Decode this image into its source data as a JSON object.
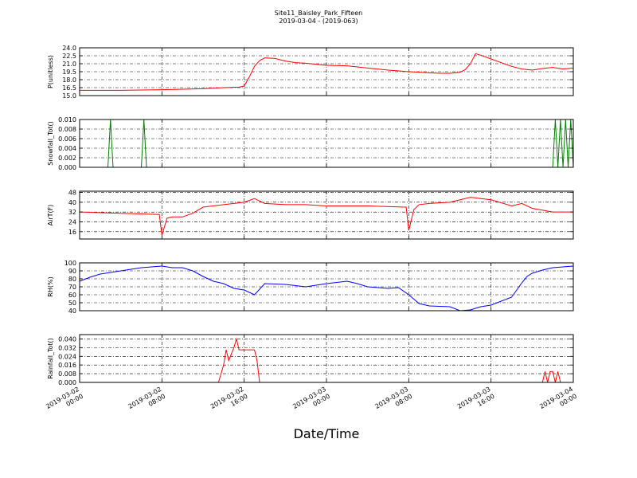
{
  "chart_data": {
    "type": "line",
    "title": "Site11_Baisley_Park_Fifteen",
    "subtitle": "2019-03-04 - (2019-063)",
    "xlabel": "Date/Time",
    "x_ticks": [
      {
        "line1": "2019-03-02",
        "line2": "00:00"
      },
      {
        "line1": "2019-03-02",
        "line2": "08:00"
      },
      {
        "line1": "2019-03-02",
        "line2": "16:00"
      },
      {
        "line1": "2019-03-03",
        "line2": "00:00"
      },
      {
        "line1": "2019-03-03",
        "line2": "08:00"
      },
      {
        "line1": "2019-03-03",
        "line2": "16:00"
      },
      {
        "line1": "2019-03-04",
        "line2": "00:00"
      }
    ],
    "xlim": [
      "2019-03-02 00:00",
      "2019-03-04 00:00"
    ],
    "grid": true,
    "panels": [
      {
        "ylabel": "P(unitless)",
        "ylim": [
          15.0,
          24.0
        ],
        "yticks": [
          "15.0",
          "16.5",
          "18.0",
          "19.5",
          "21.0",
          "22.5",
          "24.0"
        ],
        "ytick_values": [
          15.0,
          16.5,
          18.0,
          19.5,
          21.0,
          22.5,
          24.0
        ],
        "color": "#ff0000",
        "series": {
          "x": [
            "2019-03-02 00:00",
            "2019-03-02 04:00",
            "2019-03-02 08:00",
            "2019-03-02 12:00",
            "2019-03-02 14:00",
            "2019-03-02 15:30",
            "2019-03-02 16:00",
            "2019-03-02 16:30",
            "2019-03-02 17:00",
            "2019-03-02 17:30",
            "2019-03-02 18:00",
            "2019-03-02 19:00",
            "2019-03-02 20:00",
            "2019-03-02 21:00",
            "2019-03-02 22:00",
            "2019-03-03 00:00",
            "2019-03-03 02:00",
            "2019-03-03 04:00",
            "2019-03-03 06:00",
            "2019-03-03 08:00",
            "2019-03-03 09:00",
            "2019-03-03 10:00",
            "2019-03-03 11:00",
            "2019-03-03 12:00",
            "2019-03-03 13:00",
            "2019-03-03 13:30",
            "2019-03-03 14:00",
            "2019-03-03 14:30",
            "2019-03-03 15:00",
            "2019-03-03 16:00",
            "2019-03-03 17:00",
            "2019-03-03 18:00",
            "2019-03-03 19:00",
            "2019-03-03 20:00",
            "2019-03-03 21:00",
            "2019-03-03 22:00",
            "2019-03-03 23:00",
            "2019-03-04 00:00"
          ],
          "y": [
            16.0,
            16.0,
            16.1,
            16.3,
            16.5,
            16.6,
            16.8,
            18.5,
            20.5,
            21.6,
            22.1,
            22.0,
            21.5,
            21.2,
            21.1,
            20.7,
            20.6,
            20.2,
            19.8,
            19.5,
            19.4,
            19.3,
            19.2,
            19.2,
            19.4,
            19.9,
            21.0,
            22.9,
            22.6,
            21.9,
            21.2,
            20.5,
            20.0,
            19.8,
            20.1,
            20.3,
            20.0,
            20.2
          ]
        }
      },
      {
        "ylabel": "Snowfall_Tot()",
        "ylim": [
          0.0,
          0.01
        ],
        "yticks": [
          "0.000",
          "0.002",
          "0.004",
          "0.006",
          "0.008",
          "0.010"
        ],
        "ytick_values": [
          0.0,
          0.002,
          0.004,
          0.006,
          0.008,
          0.01
        ],
        "color": "#008000",
        "series": {
          "x": [
            "2019-03-02 00:00",
            "2019-03-02 02:45",
            "2019-03-02 03:00",
            "2019-03-02 03:15",
            "2019-03-02 06:00",
            "2019-03-02 06:15",
            "2019-03-02 06:30",
            "2019-03-03 22:00",
            "2019-03-03 22:15",
            "2019-03-03 22:30",
            "2019-03-03 22:45",
            "2019-03-03 23:00",
            "2019-03-03 23:15",
            "2019-03-03 23:30",
            "2019-03-03 23:45",
            "2019-03-04 00:00"
          ],
          "y": [
            0.0,
            0.0,
            0.01,
            0.0,
            0.0,
            0.01,
            0.0,
            0.0,
            0.01,
            0.0,
            0.01,
            0.0,
            0.01,
            0.0,
            0.01,
            0.0
          ]
        }
      },
      {
        "ylabel": "AirT(F)",
        "ylim": [
          10,
          49
        ],
        "yticks": [
          "16",
          "24",
          "32",
          "40",
          "48"
        ],
        "ytick_values": [
          16,
          24,
          32,
          40,
          48
        ],
        "color": "#ff0000",
        "series": {
          "x": [
            "2019-03-02 00:00",
            "2019-03-02 04:00",
            "2019-03-02 07:45",
            "2019-03-02 08:00",
            "2019-03-02 08:30",
            "2019-03-02 09:00",
            "2019-03-02 10:00",
            "2019-03-02 11:00",
            "2019-03-02 12:00",
            "2019-03-02 14:00",
            "2019-03-02 16:00",
            "2019-03-02 17:00",
            "2019-03-02 18:00",
            "2019-03-02 20:00",
            "2019-03-02 22:00",
            "2019-03-03 00:00",
            "2019-03-03 04:00",
            "2019-03-03 07:45",
            "2019-03-03 08:00",
            "2019-03-03 08:30",
            "2019-03-03 09:00",
            "2019-03-03 10:00",
            "2019-03-03 12:00",
            "2019-03-03 14:00",
            "2019-03-03 15:00",
            "2019-03-03 16:00",
            "2019-03-03 18:00",
            "2019-03-03 19:00",
            "2019-03-03 20:00",
            "2019-03-03 22:00",
            "2019-03-04 00:00"
          ],
          "y": [
            32,
            31,
            30,
            13,
            27,
            28,
            28,
            31,
            36,
            38,
            40,
            43,
            39,
            38,
            38,
            37,
            37,
            36,
            17,
            34,
            38,
            39,
            40,
            44,
            43,
            42,
            37,
            39,
            35,
            32,
            32
          ]
        }
      },
      {
        "ylabel": "RH(%)",
        "ylim": [
          40,
          100
        ],
        "yticks": [
          "40",
          "50",
          "60",
          "70",
          "80",
          "90",
          "100"
        ],
        "ytick_values": [
          40,
          50,
          60,
          70,
          80,
          90,
          100
        ],
        "color": "#0000ff",
        "series": {
          "x": [
            "2019-03-02 00:00",
            "2019-03-02 01:00",
            "2019-03-02 02:00",
            "2019-03-02 04:00",
            "2019-03-02 06:00",
            "2019-03-02 08:00",
            "2019-03-02 09:00",
            "2019-03-02 10:00",
            "2019-03-02 11:00",
            "2019-03-02 12:00",
            "2019-03-02 13:00",
            "2019-03-02 14:00",
            "2019-03-02 15:00",
            "2019-03-02 16:00",
            "2019-03-02 17:00",
            "2019-03-02 18:00",
            "2019-03-02 20:00",
            "2019-03-02 22:00",
            "2019-03-03 00:00",
            "2019-03-03 02:00",
            "2019-03-03 03:00",
            "2019-03-03 04:00",
            "2019-03-03 05:00",
            "2019-03-03 06:00",
            "2019-03-03 07:00",
            "2019-03-03 08:00",
            "2019-03-03 09:00",
            "2019-03-03 10:00",
            "2019-03-03 12:00",
            "2019-03-03 13:00",
            "2019-03-03 14:00",
            "2019-03-03 15:00",
            "2019-03-03 16:00",
            "2019-03-03 17:00",
            "2019-03-03 18:00",
            "2019-03-03 19:00",
            "2019-03-03 19:30",
            "2019-03-03 20:00",
            "2019-03-03 21:00",
            "2019-03-03 22:00",
            "2019-03-04 00:00"
          ],
          "y": [
            77,
            82,
            86,
            90,
            94,
            96,
            94,
            94,
            90,
            83,
            77,
            74,
            68,
            66,
            60,
            74,
            73,
            70,
            74,
            77,
            74,
            70,
            69,
            68,
            69,
            60,
            49,
            46,
            45,
            40,
            41,
            45,
            47,
            52,
            57,
            75,
            83,
            87,
            91,
            94,
            96
          ]
        }
      },
      {
        "ylabel": "Rainfall_Tot()",
        "ylim": [
          0.0,
          0.044
        ],
        "yticks": [
          "0.000",
          "0.008",
          "0.016",
          "0.024",
          "0.032",
          "0.040"
        ],
        "ytick_values": [
          0.0,
          0.008,
          0.016,
          0.024,
          0.032,
          0.04
        ],
        "color": "#ff0000",
        "series": {
          "x": [
            "2019-03-02 00:00",
            "2019-03-02 13:30",
            "2019-03-02 14:00",
            "2019-03-02 14:15",
            "2019-03-02 14:30",
            "2019-03-02 15:00",
            "2019-03-02 15:15",
            "2019-03-02 15:30",
            "2019-03-02 16:00",
            "2019-03-02 17:00",
            "2019-03-02 17:15",
            "2019-03-02 17:30",
            "2019-03-02 18:00",
            "2019-03-03 21:00",
            "2019-03-03 21:15",
            "2019-03-03 21:30",
            "2019-03-03 21:45",
            "2019-03-03 22:00",
            "2019-03-03 22:15",
            "2019-03-03 22:30",
            "2019-03-03 22:45",
            "2019-03-04 00:00"
          ],
          "y": [
            0,
            0,
            0.016,
            0.03,
            0.02,
            0.032,
            0.04,
            0.03,
            0.03,
            0.03,
            0.02,
            0.0,
            0.0,
            0.0,
            0.01,
            0.0,
            0.01,
            0.01,
            0.0,
            0.01,
            0.0,
            0.0
          ]
        }
      }
    ]
  }
}
